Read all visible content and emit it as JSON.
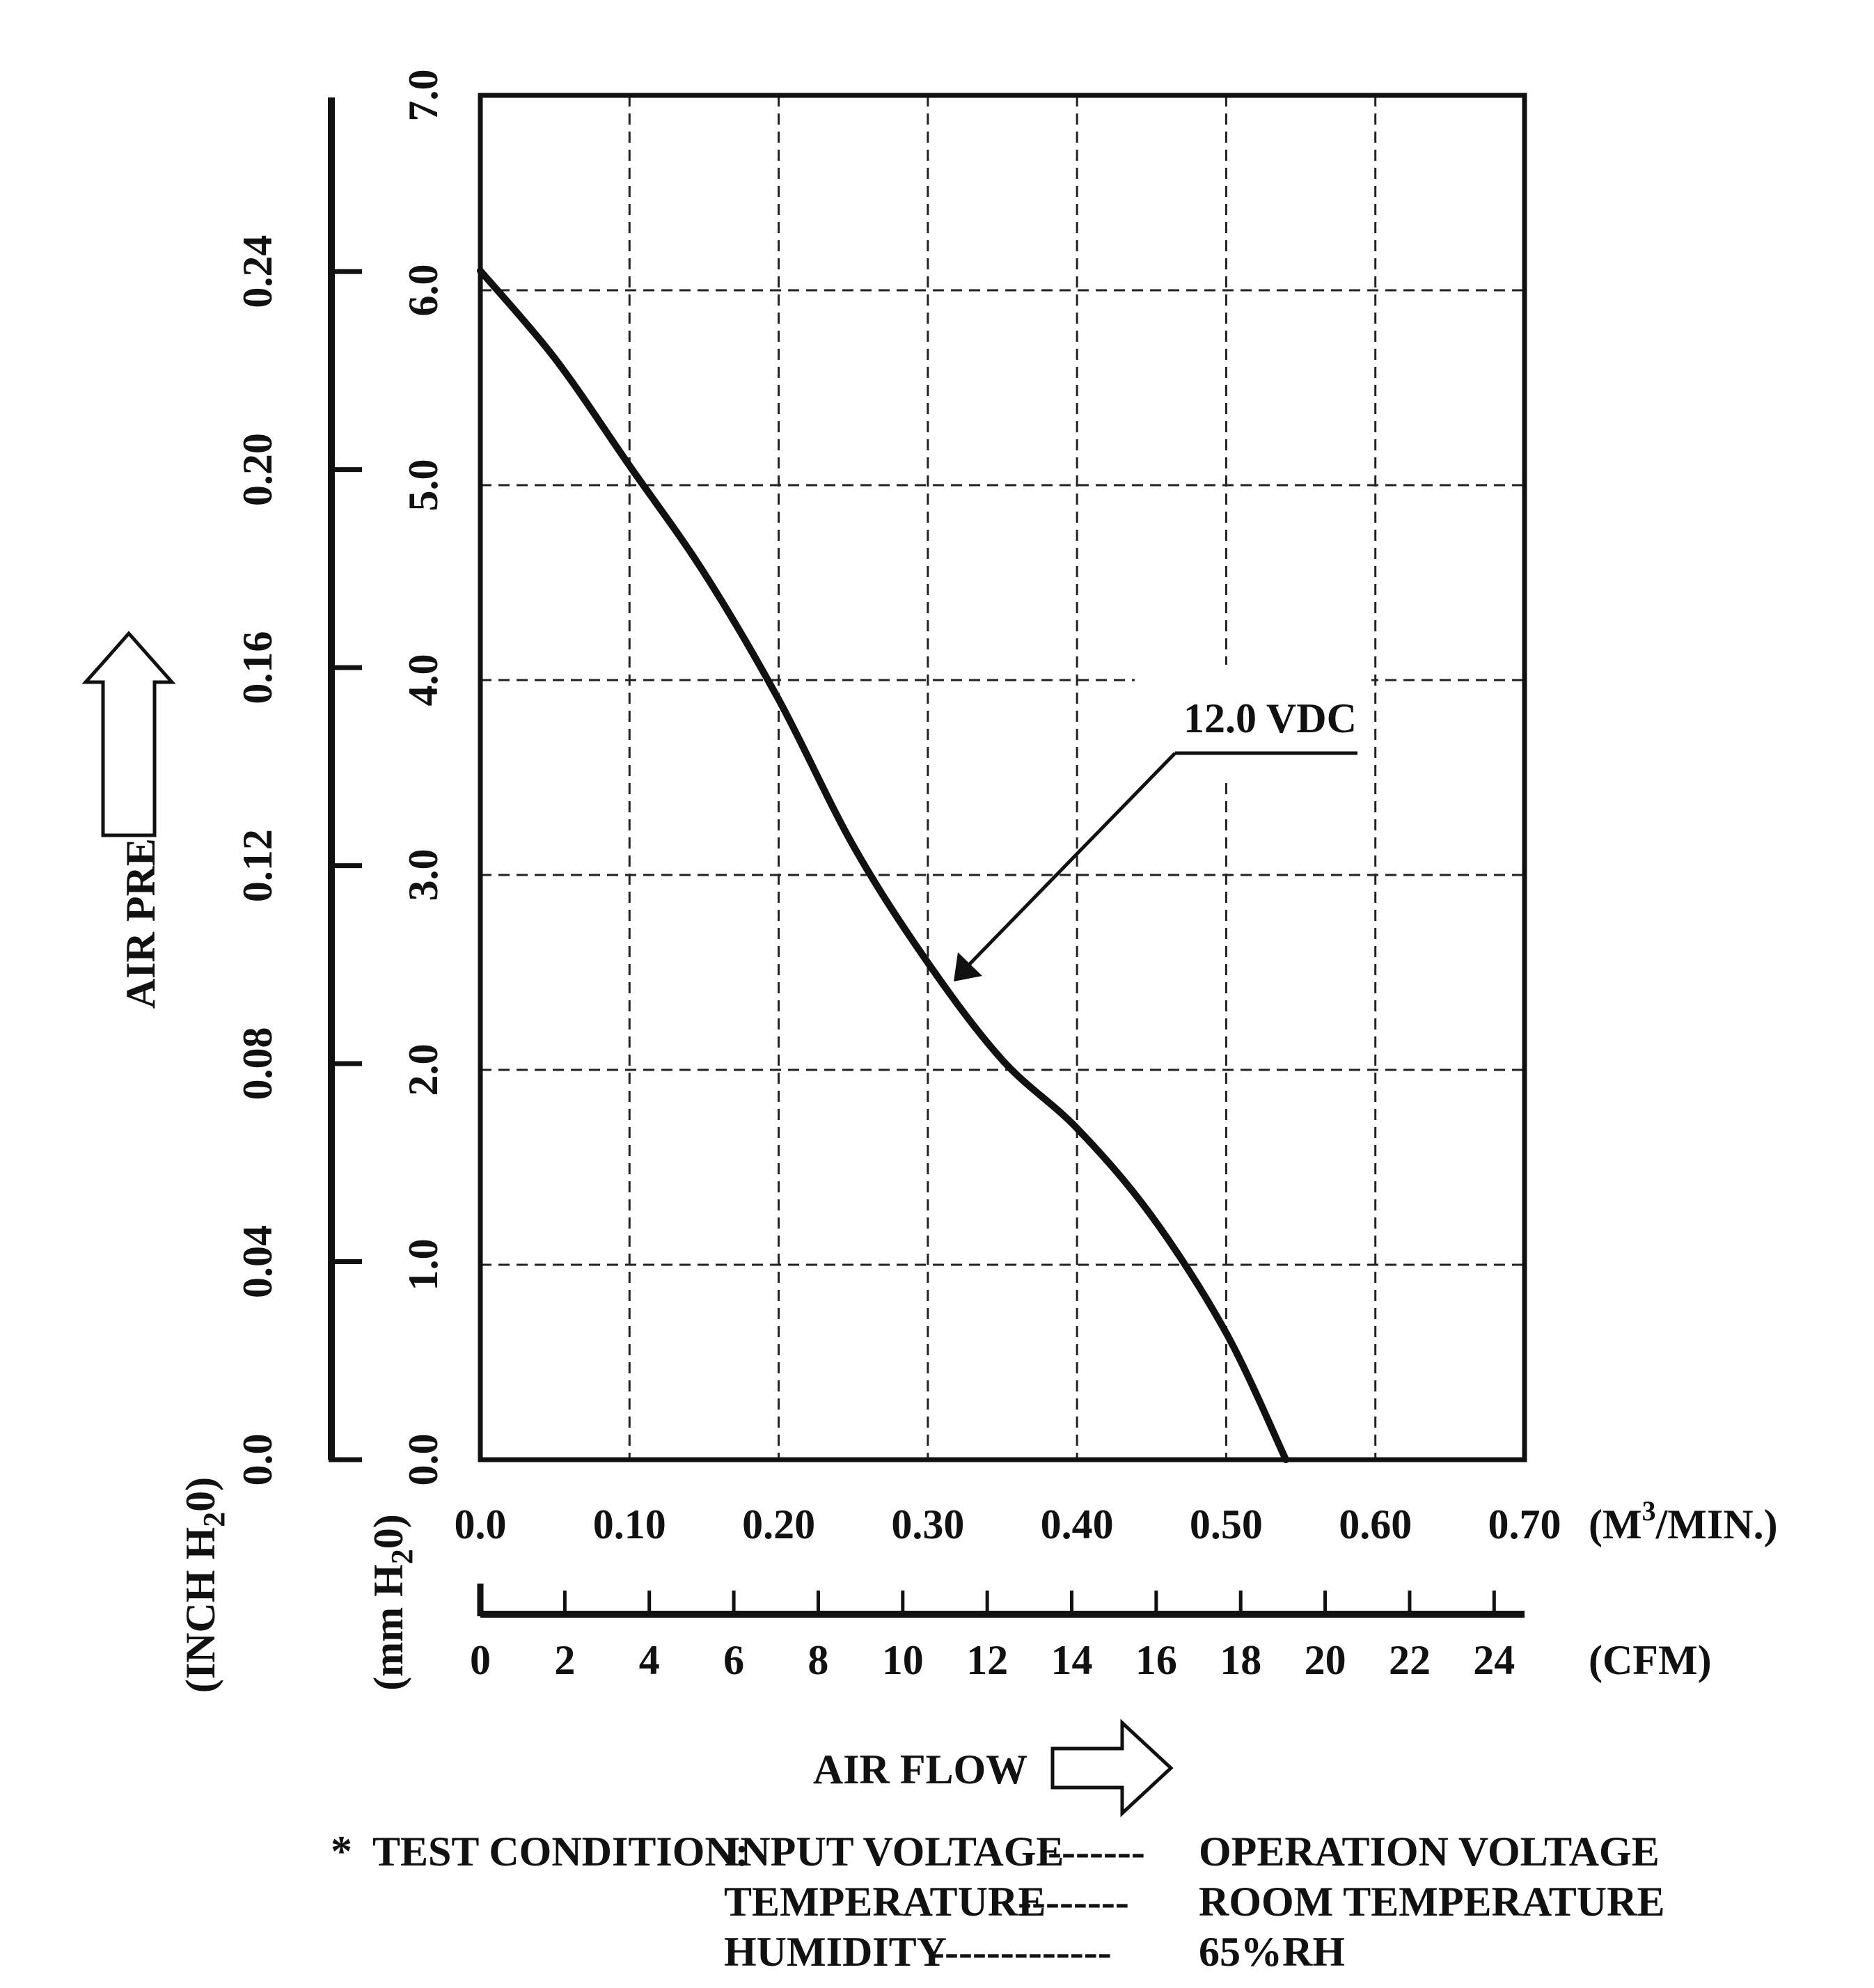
{
  "chart_data": {
    "type": "line",
    "x_axis_primary": {
      "ticks": [
        0.0,
        0.1,
        0.2,
        0.3,
        0.4,
        0.5,
        0.6,
        0.7
      ],
      "tick_labels": [
        "0.0",
        "0.10",
        "0.20",
        "0.30",
        "0.40",
        "0.50",
        "0.60",
        "0.70"
      ],
      "unit_prefix": "(M",
      "unit_sup": "3",
      "unit_suffix": "/MIN.)",
      "range": [
        0,
        0.7
      ]
    },
    "x_axis_secondary": {
      "ticks": [
        0,
        2,
        4,
        6,
        8,
        10,
        12,
        14,
        16,
        18,
        20,
        22,
        24
      ],
      "tick_labels": [
        "0",
        "2",
        "4",
        "6",
        "8",
        "10",
        "12",
        "14",
        "16",
        "18",
        "20",
        "22",
        "24"
      ],
      "unit": "(CFM)",
      "range": [
        0,
        24.72
      ]
    },
    "y_axis_primary": {
      "ticks": [
        0,
        1,
        2,
        3,
        4,
        5,
        6,
        7
      ],
      "tick_labels": [
        "0.0",
        "1.0",
        "2.0",
        "3.0",
        "4.0",
        "5.0",
        "6.0",
        "7.0"
      ],
      "unit_prefix": "(mm H",
      "unit_sub": "2",
      "unit_suffix": "0)",
      "range": [
        0,
        7
      ]
    },
    "y_axis_secondary": {
      "ticks": [
        0.0,
        0.04,
        0.08,
        0.12,
        0.16,
        0.2,
        0.24
      ],
      "tick_labels": [
        "0.0",
        "0.04",
        "0.08",
        "0.12",
        "0.16",
        "0.20",
        "0.24"
      ],
      "unit_prefix": "(INCH H",
      "unit_sub": "2",
      "unit_suffix": "0)",
      "range": [
        0,
        0.2756
      ]
    },
    "grid": true,
    "ylabel": "AIR PRESSURE",
    "xlabel": "AIR FLOW",
    "series": [
      {
        "name": "12.0 VDC",
        "x": [
          0.0,
          0.05,
          0.1,
          0.15,
          0.2,
          0.25,
          0.3,
          0.35,
          0.4,
          0.45,
          0.5,
          0.54
        ],
        "y": [
          6.1,
          5.65,
          5.1,
          4.55,
          3.9,
          3.15,
          2.55,
          2.05,
          1.7,
          1.25,
          0.65,
          0.0
        ]
      }
    ],
    "annotation": {
      "text": "12.0 VDC",
      "points_to": {
        "x": 0.31,
        "y": 2.5
      }
    }
  },
  "test_condition": {
    "bullet": "*",
    "heading": "TEST CONDITION:",
    "rows": [
      {
        "label": "INPUT VOLTAGE",
        "dashes": "-------",
        "value": "OPERATION VOLTAGE"
      },
      {
        "label": "TEMPERATURE",
        "dashes": "--------",
        "value": "ROOM TEMPERATURE"
      },
      {
        "label": "HUMIDITY",
        "dashes": "-------------",
        "value": "65%RH"
      }
    ]
  }
}
